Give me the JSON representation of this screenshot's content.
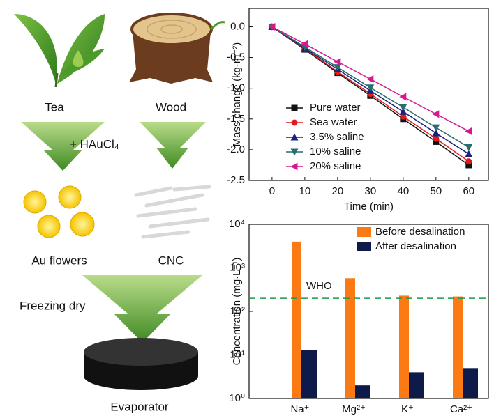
{
  "diagram": {
    "tea": "Tea",
    "wood": "Wood",
    "reagent": "+ HAuCl₄",
    "au_flowers": "Au flowers",
    "cnc": "CNC",
    "process": "Freezing dry",
    "product": "Evaporator"
  },
  "chart_data": [
    {
      "type": "line",
      "xlabel": "Time (min)",
      "ylabel": "Mass change (kg·m⁻²)",
      "x": [
        0,
        10,
        20,
        30,
        40,
        50,
        60
      ],
      "xlim": [
        -7,
        66
      ],
      "xticks": [
        0,
        10,
        20,
        30,
        40,
        50,
        60
      ],
      "ylim": [
        -2.5,
        0.3
      ],
      "yticks": [
        {
          "value": 0,
          "label": "0.0"
        },
        -0.5,
        {
          "value": -1,
          "label": "-1.0"
        },
        -1.5,
        {
          "value": -2,
          "label": "-2.0"
        },
        -2.5
      ],
      "legend": "lower left",
      "series": [
        {
          "name": "Pure water",
          "color": "#111111",
          "marker": "square",
          "values": [
            0,
            -0.37,
            -0.75,
            -1.12,
            -1.5,
            -1.87,
            -2.25
          ]
        },
        {
          "name": "Sea water",
          "color": "#e31a1c",
          "marker": "circle",
          "values": [
            0,
            -0.36,
            -0.73,
            -1.09,
            -1.46,
            -1.82,
            -2.19
          ]
        },
        {
          "name": "3.5% saline",
          "color": "#1a237e",
          "marker": "triangle-up",
          "values": [
            0,
            -0.35,
            -0.69,
            -1.04,
            -1.38,
            -1.73,
            -2.07
          ]
        },
        {
          "name": "10% saline",
          "color": "#2a6d6f",
          "marker": "triangle-down",
          "values": [
            0,
            -0.33,
            -0.66,
            -0.99,
            -1.31,
            -1.64,
            -1.96
          ]
        },
        {
          "name": "20% saline",
          "color": "#d6198f",
          "marker": "triangle-left",
          "values": [
            0,
            -0.28,
            -0.57,
            -0.85,
            -1.14,
            -1.42,
            -1.7
          ]
        }
      ]
    },
    {
      "type": "bar",
      "ylabel": "Concentration (mg·L⁻¹)",
      "log_scale": true,
      "categories": [
        "Na⁺",
        "Mg²⁺",
        "K⁺",
        "Ca²⁺"
      ],
      "ylim": [
        1,
        10000
      ],
      "yticks": [
        {
          "value": 1,
          "label": "10⁰"
        },
        {
          "value": 10,
          "label": "10¹"
        },
        {
          "value": 100,
          "label": "10²"
        },
        {
          "value": 1000,
          "label": "10³"
        },
        {
          "value": 10000,
          "label": "10⁴"
        }
      ],
      "legend": "upper right",
      "reference_lines": [
        {
          "value": 200,
          "label": "WHO",
          "color": "#1a9a4a"
        }
      ],
      "series": [
        {
          "name": "Before desalination",
          "color": "#fb7a14",
          "values": [
            4000,
            580,
            230,
            220
          ]
        },
        {
          "name": "After desalination",
          "color": "#0d1a4a",
          "values": [
            13,
            2,
            4,
            5
          ]
        }
      ]
    }
  ]
}
